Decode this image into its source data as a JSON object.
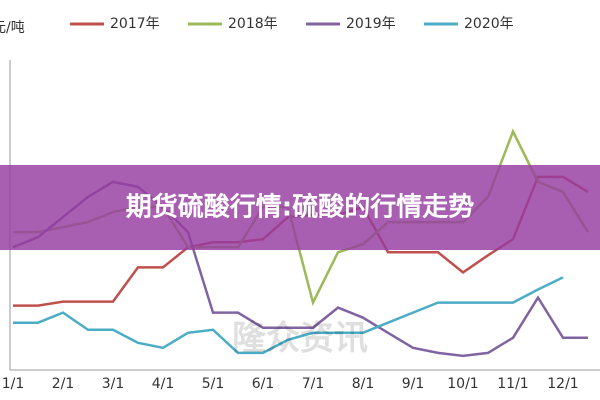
{
  "chart_data": {
    "type": "line",
    "title": "期货硫酸行情:硫酸的行情走势",
    "y_label": "元/吨",
    "watermark": "隆众资讯",
    "categories": [
      "1/1",
      null,
      "2/1",
      null,
      "3/1",
      null,
      "4/1",
      null,
      "5/1",
      null,
      "6/1",
      null,
      "7/1",
      null,
      "8/1",
      null,
      "9/1",
      null,
      "10/1",
      null,
      "11/1",
      null,
      "12/1",
      null
    ],
    "ylim": [
      0,
      6.5
    ],
    "series": [
      {
        "name": "2017年",
        "color": "#c0504d",
        "values": [
          1.28,
          1.28,
          1.36,
          1.36,
          1.36,
          2.04,
          2.04,
          2.44,
          2.54,
          2.54,
          2.6,
          3.04,
          3.08,
          3.08,
          3.24,
          2.34,
          2.34,
          2.34,
          1.94,
          2.28,
          2.6,
          3.84,
          3.84,
          3.54
        ]
      },
      {
        "name": "2018年",
        "color": "#9bbb59",
        "values": [
          2.74,
          2.74,
          2.84,
          2.94,
          3.14,
          3.24,
          3.24,
          2.44,
          2.44,
          2.44,
          3.24,
          3.24,
          1.34,
          2.34,
          2.5,
          2.94,
          2.94,
          2.94,
          2.94,
          3.44,
          4.74,
          3.74,
          3.54,
          2.74
        ]
      },
      {
        "name": "2019年",
        "color": "#8064a2",
        "values": [
          2.44,
          2.64,
          3.04,
          3.44,
          3.74,
          3.64,
          3.24,
          2.74,
          1.14,
          1.14,
          0.84,
          0.84,
          0.84,
          1.24,
          1.04,
          0.74,
          0.44,
          0.34,
          0.28,
          0.34,
          0.64,
          1.44,
          0.64,
          0.64
        ]
      },
      {
        "name": "2020年",
        "color": "#4bacc6",
        "values": [
          0.94,
          0.94,
          1.14,
          0.8,
          0.8,
          0.54,
          0.44,
          0.74,
          0.8,
          0.34,
          0.34,
          0.6,
          0.74,
          0.74,
          0.74,
          0.94,
          1.14,
          1.34,
          1.34,
          1.34,
          1.34,
          1.6,
          1.84,
          null
        ]
      }
    ]
  }
}
